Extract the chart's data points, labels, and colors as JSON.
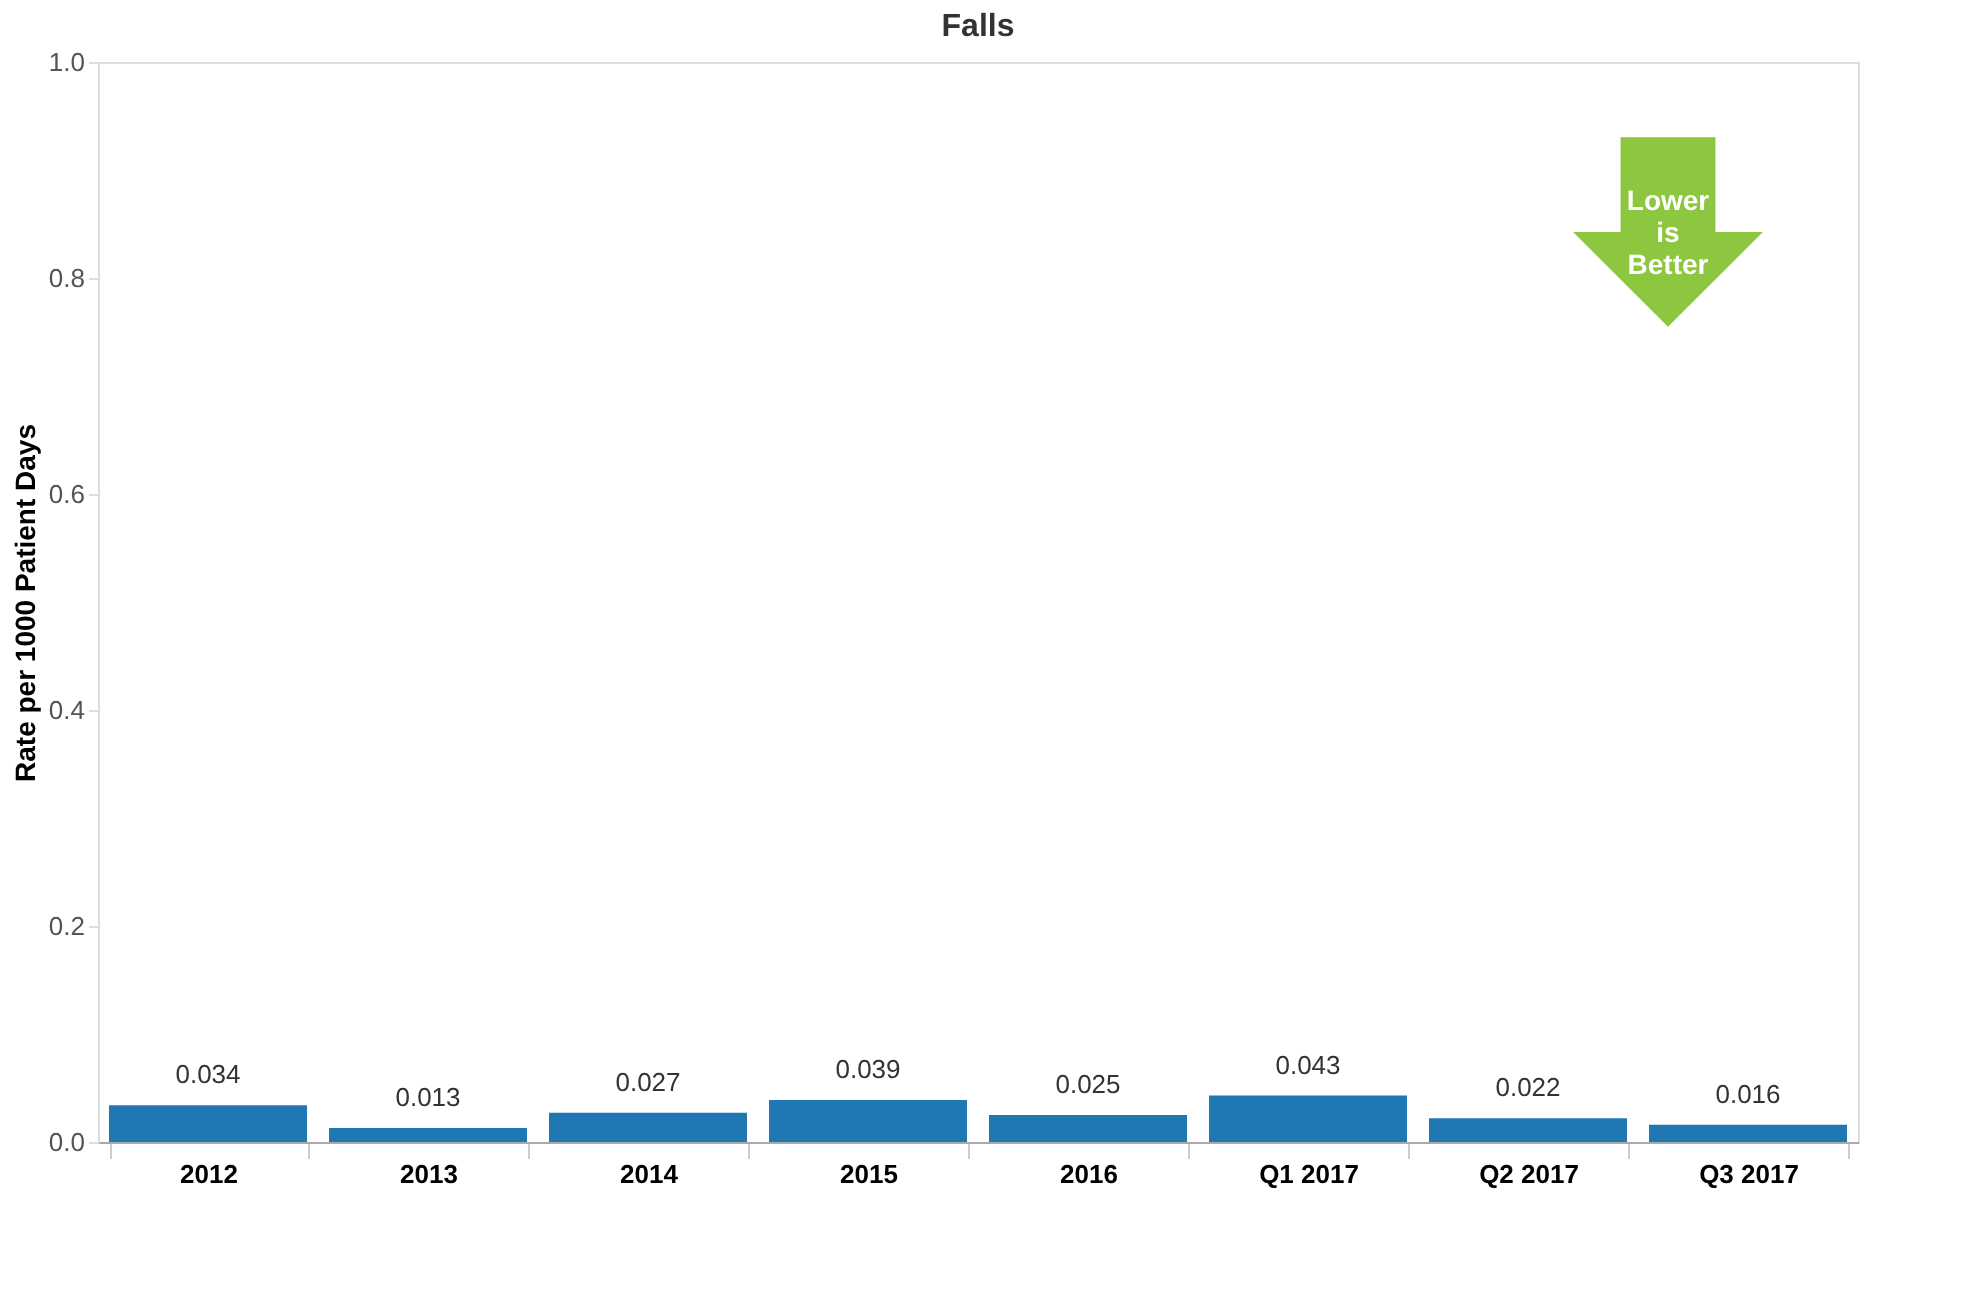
{
  "chart_data": {
    "type": "bar",
    "title": "Falls",
    "ylabel": "Rate per 1000 Patient Days",
    "categories": [
      "2012",
      "2013",
      "2014",
      "2015",
      "2016",
      "Q1 2017",
      "Q2 2017",
      "Q3 2017"
    ],
    "values": [
      0.034,
      0.013,
      0.027,
      0.039,
      0.025,
      0.043,
      0.022,
      0.016
    ],
    "color": "#1f77b4",
    "ylim": [
      0,
      1
    ],
    "yticks": [
      {
        "value": 0,
        "label": "0.0"
      },
      0.2,
      0.4,
      0.6,
      0.8,
      {
        "value": 1,
        "label": "1.0"
      }
    ],
    "grid": false,
    "data_labels": true,
    "annotations": [
      "Lower is Better"
    ]
  }
}
